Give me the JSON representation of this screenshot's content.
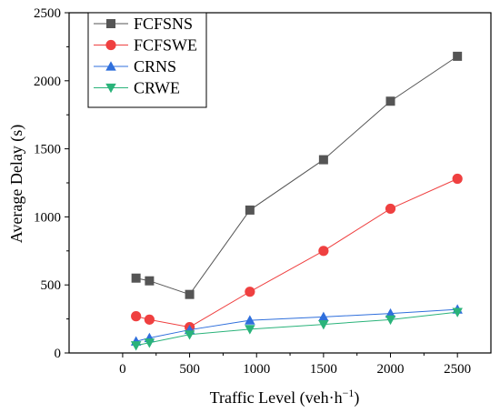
{
  "chart_data": {
    "type": "line",
    "title": "",
    "xlabel": "Traffic Level (veh·h",
    "xlabel_sup": "−1",
    "xlabel_close": ")",
    "ylabel": "Average Delay (s)",
    "xlim": [
      -400,
      2750
    ],
    "ylim": [
      0,
      2500
    ],
    "x_ticks": [
      0,
      500,
      1000,
      1500,
      2000,
      2500
    ],
    "y_ticks": [
      0,
      500,
      1000,
      1500,
      2000,
      2500
    ],
    "grid": false,
    "legend_position": "top-left",
    "series": [
      {
        "name": "FCFSNS",
        "color": "#555555",
        "marker": "square",
        "x": [
          100,
          200,
          500,
          950,
          1500,
          2000,
          2500
        ],
        "values": [
          550,
          530,
          430,
          1050,
          1420,
          1850,
          2180
        ]
      },
      {
        "name": "FCFSWE",
        "color": "#ef4040",
        "marker": "circle",
        "x": [
          100,
          200,
          500,
          950,
          1500,
          2000,
          2500
        ],
        "values": [
          270,
          245,
          190,
          450,
          750,
          1060,
          1280
        ]
      },
      {
        "name": "CRNS",
        "color": "#2f6fdc",
        "marker": "triangle-up",
        "x": [
          100,
          200,
          500,
          950,
          1500,
          2000,
          2500
        ],
        "values": [
          85,
          110,
          170,
          240,
          265,
          290,
          320
        ]
      },
      {
        "name": "CRWE",
        "color": "#2ab37a",
        "marker": "triangle-down",
        "x": [
          100,
          200,
          500,
          950,
          1500,
          2000,
          2500
        ],
        "values": [
          55,
          75,
          135,
          175,
          210,
          245,
          300
        ]
      }
    ]
  }
}
